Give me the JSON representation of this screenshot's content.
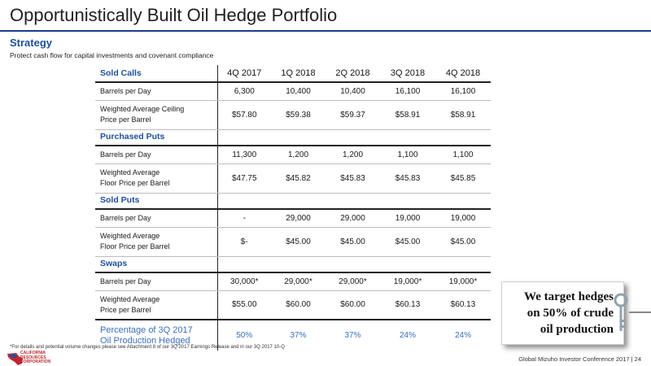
{
  "title": "Opportunistically Built Oil Hedge Portfolio",
  "strategy": {
    "heading": "Strategy",
    "subtitle": "Protect cash flow for capital investments and covenant compliance"
  },
  "table": {
    "quarters": [
      "4Q 2017",
      "1Q 2018",
      "2Q 2018",
      "3Q 2018",
      "4Q 2018"
    ],
    "sold_calls": {
      "label": "Sold Calls",
      "rows": [
        {
          "label": "Barrels per Day",
          "values": [
            "6,300",
            "10,400",
            "10,400",
            "16,100",
            "16,100"
          ]
        },
        {
          "label_line1": "Weighted Average Ceiling",
          "label_line2": "Price per Barrel",
          "values": [
            "$57.80",
            "$59.38",
            "$59.37",
            "$58.91",
            "$58.91"
          ]
        }
      ]
    },
    "purchased_puts": {
      "label": "Purchased Puts",
      "rows": [
        {
          "label": "Barrels per Day",
          "values": [
            "11,300",
            "1,200",
            "1,200",
            "1,100",
            "1,100"
          ]
        },
        {
          "label_line1": "Weighted Average",
          "label_line2": "Floor Price per Barrel",
          "values": [
            "$47.75",
            "$45.82",
            "$45.83",
            "$45.83",
            "$45.85"
          ]
        }
      ]
    },
    "sold_puts": {
      "label": "Sold Puts",
      "rows": [
        {
          "label": "Barrels per Day",
          "values": [
            "-",
            "29,000",
            "29,000",
            "19,000",
            "19,000"
          ]
        },
        {
          "label_line1": "Weighted Average",
          "label_line2": "Floor Price per Barrel",
          "values": [
            "$-",
            "$45.00",
            "$45.00",
            "$45.00",
            "$45.00"
          ]
        }
      ]
    },
    "swaps": {
      "label": "Swaps",
      "rows": [
        {
          "label": "Barrels per Day",
          "values": [
            "30,000*",
            "29,000*",
            "29,000*",
            "19,000*",
            "19,000*"
          ]
        },
        {
          "label_line1": "Weighted Average",
          "label_line2": "Price per Barrel",
          "values": [
            "$55.00",
            "$60.00",
            "$60.00",
            "$60.13",
            "$60.13"
          ]
        }
      ]
    },
    "percentage": {
      "label_line1": "Percentage of 3Q 2017",
      "label_line2": "Oil Production Hedged",
      "values": [
        "50%",
        "37%",
        "37%",
        "24%",
        "24%"
      ]
    }
  },
  "callout": {
    "line1": "We target hedges",
    "line2": "on 50% of crude",
    "line3": "oil production"
  },
  "footnote": "*For details and potential volume changes please see Attachment 8 of our 3Q 2017 Earnings Release and in our 3Q 2017 10-Q",
  "logo": {
    "line1": "CALIFORNIA",
    "line2": "RESOURCES",
    "line3": "CORPORATION"
  },
  "footer": "Global Mizuho Investor Conference 2017 | 24",
  "colors": {
    "accent_blue": "#1e4f9c",
    "title_rule": "#1b3d8f",
    "percent_blue": "#3a6fbe",
    "logo_red": "#c0272d"
  }
}
